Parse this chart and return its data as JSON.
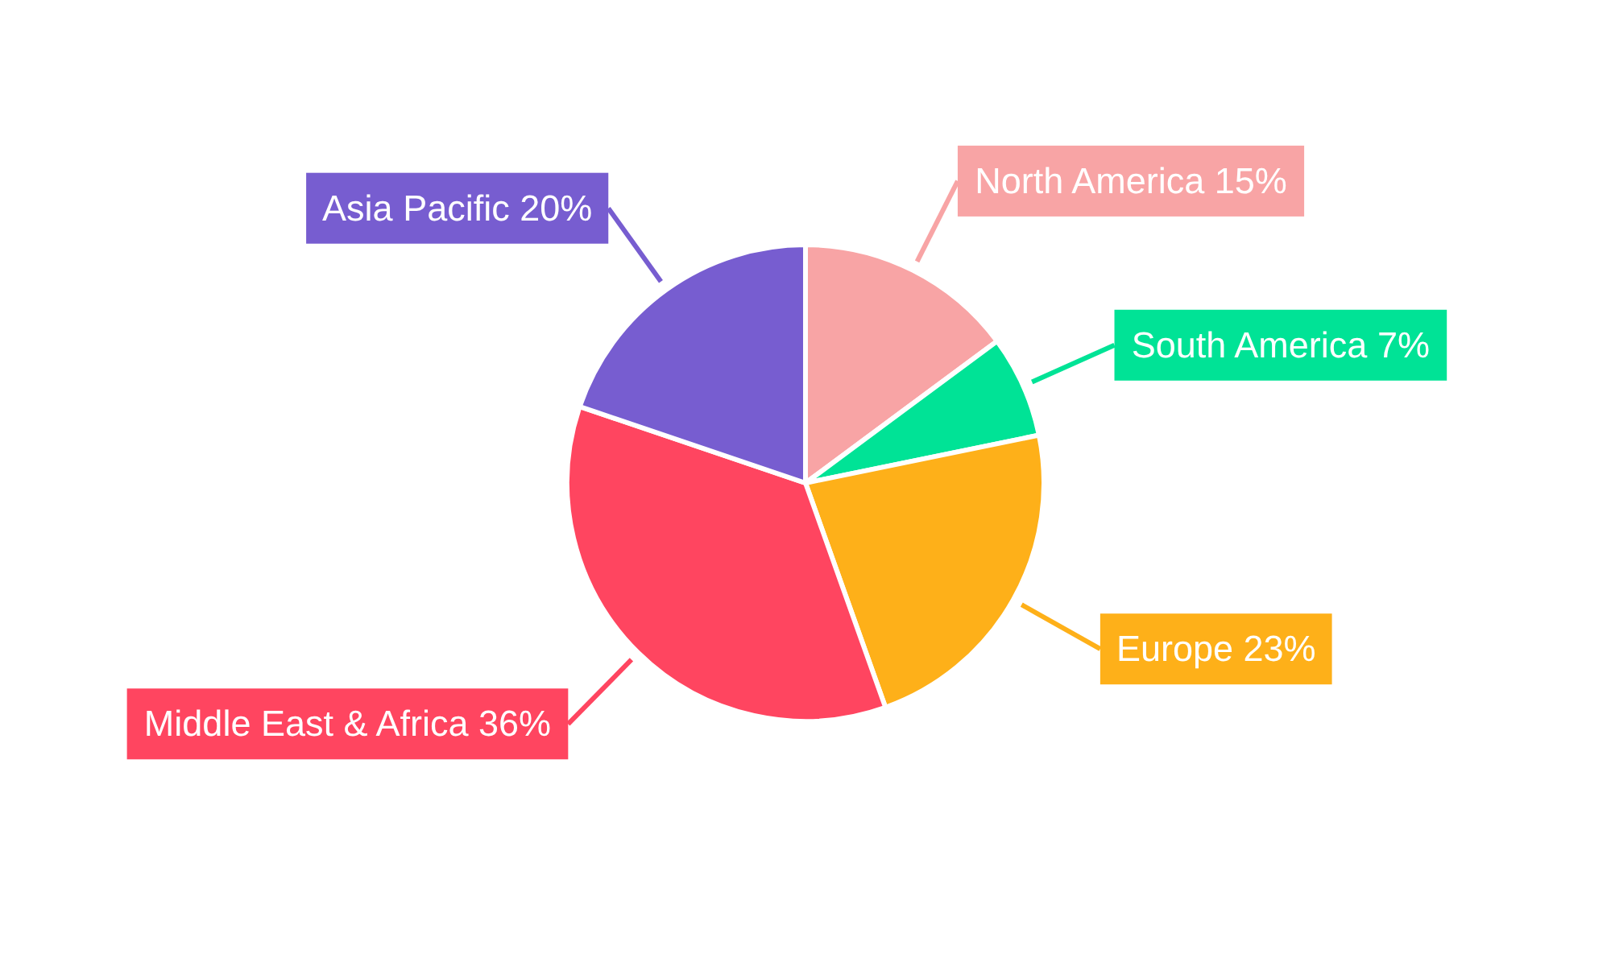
{
  "chart_data": {
    "type": "pie",
    "categories": [
      "North America",
      "South America",
      "Europe",
      "Middle East & Africa",
      "Asia Pacific"
    ],
    "values": [
      15,
      7,
      23,
      36,
      20
    ],
    "value_labels": [
      "15%",
      "7%",
      "23%",
      "36%",
      "20%"
    ],
    "colors": [
      "#f8a4a5",
      "#00e396",
      "#feb019",
      "#ff4560",
      "#775dd0"
    ]
  }
}
